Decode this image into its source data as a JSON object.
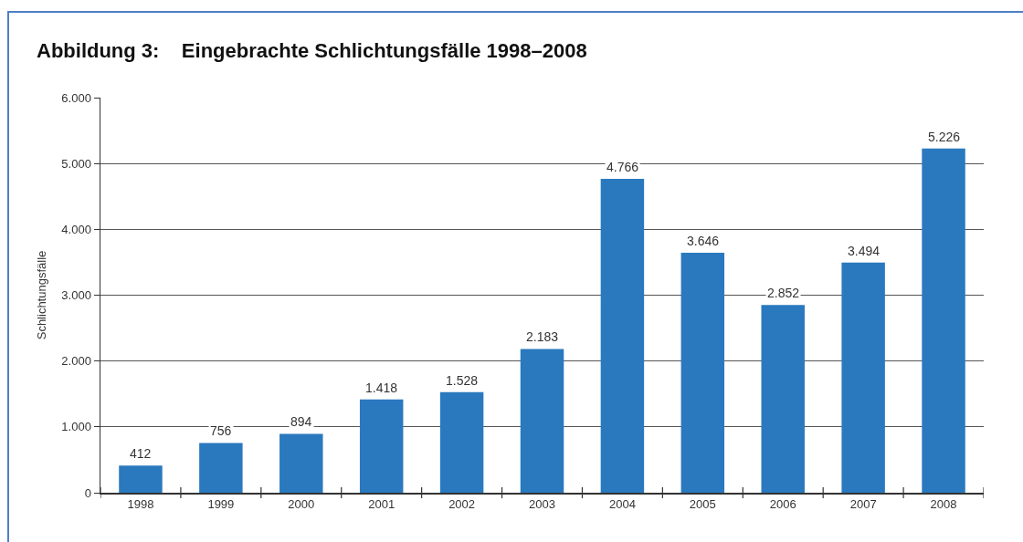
{
  "chart_data": {
    "type": "bar",
    "title": "Abbildung 3:    Eingebrachte Schlichtungsfälle 1998–2008",
    "ylabel": "Schlichtungsfälle",
    "categories": [
      "1998",
      "1999",
      "2000",
      "2001",
      "2002",
      "2003",
      "2004",
      "2005",
      "2006",
      "2007",
      "2008"
    ],
    "values": [
      412,
      756,
      894,
      1418,
      1528,
      2183,
      4766,
      3646,
      2852,
      3494,
      5226
    ],
    "value_labels": [
      "412",
      "756",
      "894",
      "1.418",
      "1.528",
      "2.183",
      "4.766",
      "3.646",
      "2.852",
      "3.494",
      "5.226"
    ],
    "color": "#2a79be",
    "ylim": [
      0,
      6000
    ],
    "yticks": [
      0,
      {
        "value": 1000,
        "label": "1.000"
      },
      {
        "value": 2000,
        "label": "2.000"
      },
      {
        "value": 3000,
        "label": "3.000"
      },
      {
        "value": 4000,
        "label": "4.000"
      },
      {
        "value": 5000,
        "label": "5.000"
      },
      {
        "value": 6000,
        "label": "6.000"
      }
    ],
    "grid": "y"
  }
}
